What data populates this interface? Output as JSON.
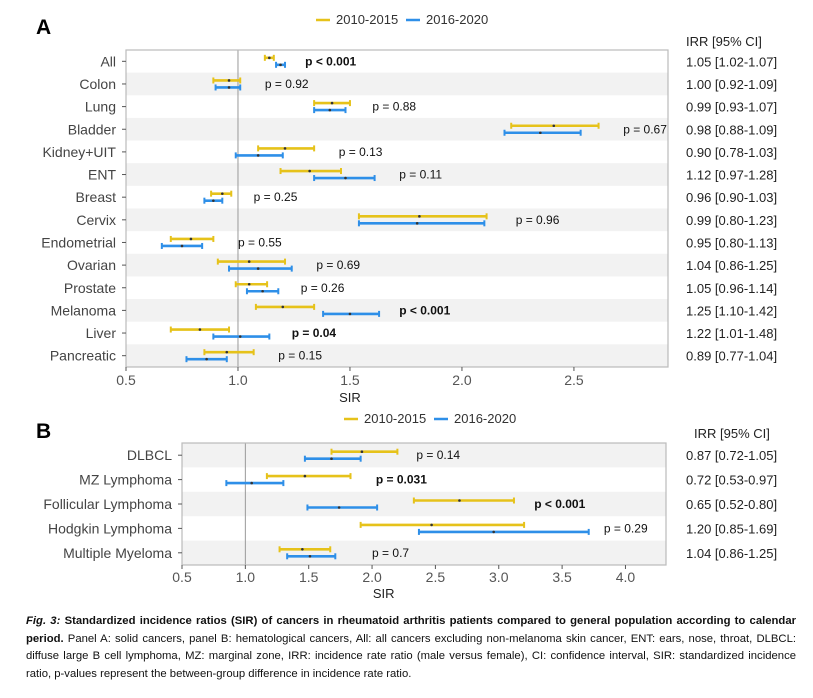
{
  "colors": {
    "period1": "#E6C21A",
    "period2": "#2E8FE8",
    "stripe": "#F2F2F2",
    "ref_line": "#999999",
    "frame": "#BBBBBB"
  },
  "legend": {
    "period1_label": "2010-2015",
    "period2_label": "2016-2020"
  },
  "irr_header": "IRR [95% CI]",
  "chart_data": [
    {
      "panel": "A",
      "type": "forest",
      "title": "A",
      "xlabel": "SIR",
      "xlim": [
        0.5,
        2.92
      ],
      "xticks": [
        0.5,
        1.0,
        1.5,
        2.0,
        2.5
      ],
      "xtick_labels": [
        "0.5",
        "1.0",
        "1.5",
        "2.0",
        "2.5"
      ],
      "reference_line": 1.0,
      "legend_position": "top",
      "series_names": [
        "2010-2015",
        "2016-2020"
      ],
      "rows": [
        {
          "label": "All",
          "p": "p < 0.001",
          "p_bold": true,
          "p_x": 1.3,
          "irr": "1.05 [1.02-1.07]",
          "s1": [
            1.14,
            1.12,
            1.16
          ],
          "s2": [
            1.19,
            1.17,
            1.21
          ]
        },
        {
          "label": "Colon",
          "p": "p = 0.92",
          "p_bold": false,
          "p_x": 1.12,
          "irr": "1.00 [0.92-1.09]",
          "s1": [
            0.96,
            0.89,
            1.01
          ],
          "s2": [
            0.96,
            0.9,
            1.01
          ]
        },
        {
          "label": "Lung",
          "p": "p = 0.88",
          "p_bold": false,
          "p_x": 1.6,
          "irr": "0.99 [0.93-1.07]",
          "s1": [
            1.42,
            1.34,
            1.5
          ],
          "s2": [
            1.41,
            1.34,
            1.48
          ]
        },
        {
          "label": "Bladder",
          "p": "p = 0.67",
          "p_bold": false,
          "p_x": 2.72,
          "irr": "0.98 [0.88-1.09]",
          "s1": [
            2.41,
            2.22,
            2.61
          ],
          "s2": [
            2.35,
            2.19,
            2.53
          ]
        },
        {
          "label": "Kidney+UIT",
          "p": "p = 0.13",
          "p_bold": false,
          "p_x": 1.45,
          "irr": "0.90 [0.78-1.03]",
          "s1": [
            1.21,
            1.09,
            1.34
          ],
          "s2": [
            1.09,
            0.99,
            1.2
          ]
        },
        {
          "label": "ENT",
          "p": "p = 0.11",
          "p_bold": false,
          "p_x": 1.72,
          "irr": "1.12 [0.97-1.28]",
          "s1": [
            1.32,
            1.19,
            1.46
          ],
          "s2": [
            1.48,
            1.34,
            1.61
          ]
        },
        {
          "label": "Breast",
          "p": "p = 0.25",
          "p_bold": false,
          "p_x": 1.07,
          "irr": "0.96 [0.90-1.03]",
          "s1": [
            0.93,
            0.88,
            0.97
          ],
          "s2": [
            0.89,
            0.85,
            0.93
          ]
        },
        {
          "label": "Cervix",
          "p": "p = 0.96",
          "p_bold": false,
          "p_x": 2.24,
          "irr": "0.99 [0.80-1.23]",
          "s1": [
            1.81,
            1.54,
            2.11
          ],
          "s2": [
            1.8,
            1.54,
            2.1
          ]
        },
        {
          "label": "Endometrial",
          "p": "p = 0.55",
          "p_bold": false,
          "p_x": 1.0,
          "irr": "0.95 [0.80-1.13]",
          "s1": [
            0.79,
            0.7,
            0.89
          ],
          "s2": [
            0.75,
            0.66,
            0.84
          ]
        },
        {
          "label": "Ovarian",
          "p": "p = 0.69",
          "p_bold": false,
          "p_x": 1.35,
          "irr": "1.04 [0.86-1.25]",
          "s1": [
            1.05,
            0.91,
            1.21
          ],
          "s2": [
            1.09,
            0.96,
            1.24
          ]
        },
        {
          "label": "Prostate",
          "p": "p = 0.26",
          "p_bold": false,
          "p_x": 1.28,
          "irr": "1.05 [0.96-1.14]",
          "s1": [
            1.05,
            0.99,
            1.13
          ],
          "s2": [
            1.11,
            1.04,
            1.18
          ]
        },
        {
          "label": "Melanoma",
          "p": "p < 0.001",
          "p_bold": true,
          "p_x": 1.72,
          "irr": "1.25 [1.10-1.42]",
          "s1": [
            1.2,
            1.08,
            1.34
          ],
          "s2": [
            1.5,
            1.38,
            1.63
          ]
        },
        {
          "label": "Liver",
          "p": "p = 0.04",
          "p_bold": true,
          "p_x": 1.24,
          "irr": "1.22 [1.01-1.48]",
          "s1": [
            0.83,
            0.7,
            0.96
          ],
          "s2": [
            1.01,
            0.89,
            1.14
          ]
        },
        {
          "label": "Pancreatic",
          "p": "p = 0.15",
          "p_bold": false,
          "p_x": 1.18,
          "irr": "0.89 [0.77-1.04]",
          "s1": [
            0.95,
            0.85,
            1.07
          ],
          "s2": [
            0.86,
            0.77,
            0.95
          ]
        }
      ]
    },
    {
      "panel": "B",
      "type": "forest",
      "title": "B",
      "xlabel": "SIR",
      "xlim": [
        0.5,
        4.32
      ],
      "xticks": [
        0.5,
        1.0,
        1.5,
        2.0,
        2.5,
        3.0,
        3.5,
        4.0
      ],
      "xtick_labels": [
        "0.5",
        "1.0",
        "1.5",
        "2.0",
        "2.5",
        "3.0",
        "3.5",
        "4.0"
      ],
      "reference_line": 1.0,
      "legend_position": "top",
      "series_names": [
        "2010-2015",
        "2016-2020"
      ],
      "rows": [
        {
          "label": "DLBCL",
          "p": "p = 0.14",
          "p_bold": false,
          "p_x": 2.35,
          "irr": "0.87 [0.72-1.05]",
          "s1": [
            1.92,
            1.68,
            2.2
          ],
          "s2": [
            1.68,
            1.47,
            1.91
          ]
        },
        {
          "label": "MZ Lymphoma",
          "p": "p = 0.031",
          "p_bold": true,
          "p_x": 2.03,
          "irr": "0.72 [0.53-0.97]",
          "s1": [
            1.47,
            1.17,
            1.83
          ],
          "s2": [
            1.05,
            0.85,
            1.3
          ]
        },
        {
          "label": "Follicular Lymphoma",
          "p": "p < 0.001",
          "p_bold": true,
          "p_x": 3.28,
          "irr": "0.65 [0.52-0.80]",
          "s1": [
            2.69,
            2.33,
            3.12
          ],
          "s2": [
            1.74,
            1.49,
            2.04
          ]
        },
        {
          "label": "Hodgkin Lymphoma",
          "p": "p = 0.29",
          "p_bold": false,
          "p_x": 3.83,
          "irr": "1.20 [0.85-1.69]",
          "s1": [
            2.47,
            1.91,
            3.2
          ],
          "s2": [
            2.96,
            2.37,
            3.71
          ]
        },
        {
          "label": "Multiple Myeloma",
          "p": "p = 0.7",
          "p_bold": false,
          "p_x": 2.0,
          "irr": "1.04 [0.86-1.25]",
          "s1": [
            1.45,
            1.27,
            1.67
          ],
          "s2": [
            1.51,
            1.33,
            1.71
          ]
        }
      ]
    }
  ],
  "caption": {
    "fig_label": "Fig. 3:",
    "title": "Standardized incidence ratios (SIR) of cancers in rheumatoid arthritis patients compared to general population according to calendar period.",
    "body": "Panel A: solid cancers, panel B: hematological cancers, All: all cancers excluding non-melanoma skin cancer, ENT: ears, nose, throat, DLBCL: diffuse large B cell lymphoma, MZ: marginal zone, IRR: incidence rate ratio (male versus female), CI: confidence interval, SIR: standardized incidence ratio, p-values represent the between-group difference in incidence rate ratio."
  }
}
